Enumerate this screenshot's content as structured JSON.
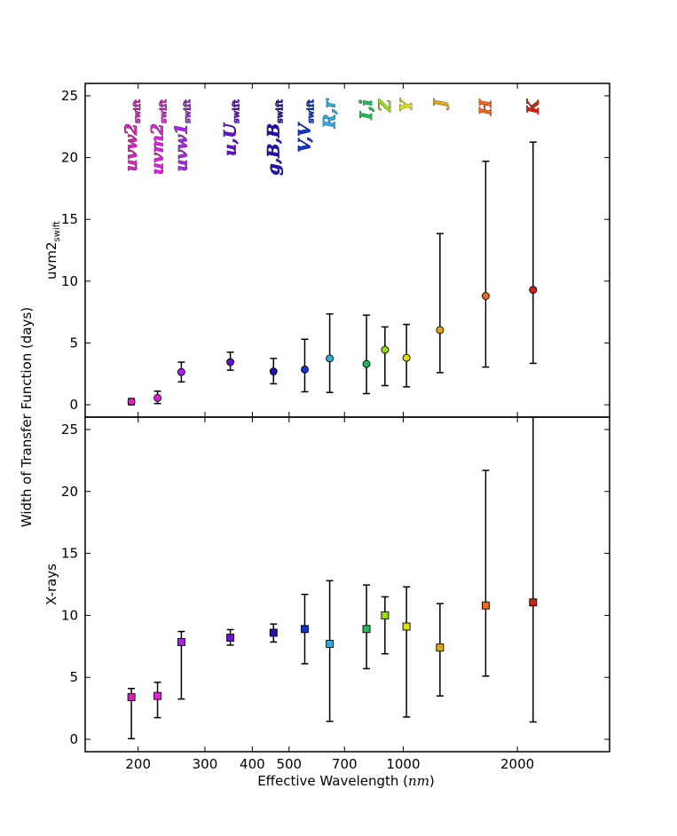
{
  "chart_data": {
    "type": "scatter",
    "xscale": "log",
    "xlim": [
      145,
      3500
    ],
    "xticks": [
      200,
      300,
      400,
      500,
      700,
      1000,
      2000
    ],
    "xticklabels": [
      "200",
      "300",
      "400",
      "500",
      "700",
      "1000",
      "2000"
    ],
    "xlabel_text": "Effective Wavelength",
    "xlabel_unit": "nm",
    "shared_ylabel": "Width of Transfer Function (days)",
    "bands": [
      {
        "main": "uvw2",
        "sub": "swift",
        "color": "#dd22bb"
      },
      {
        "main": "uvm2",
        "sub": "swift",
        "color": "#dd22dd"
      },
      {
        "main": "uvw1",
        "sub": "swift",
        "color": "#aa22ee"
      },
      {
        "main": "u,U",
        "sub": "swift",
        "color": "#6611cc"
      },
      {
        "main": "g,B,B",
        "sub": "swift",
        "color": "#2211bb"
      },
      {
        "main": "V,V",
        "sub": "swift",
        "color": "#1133cc"
      },
      {
        "main": "R,r",
        "sub": "",
        "color": "#33aadd"
      },
      {
        "main": "I,i",
        "sub": "",
        "color": "#22bb55"
      },
      {
        "main": "Z",
        "sub": "",
        "color": "#99dd11"
      },
      {
        "main": "Y",
        "sub": "",
        "color": "#dddd11"
      },
      {
        "main": "J",
        "sub": "",
        "color": "#ddaa11"
      },
      {
        "main": "H",
        "sub": "",
        "color": "#ee6622"
      },
      {
        "main": "K",
        "sub": "",
        "color": "#cc2211"
      }
    ],
    "panels": [
      {
        "ylabel": "uvm2",
        "ylabel_sub": "swift",
        "marker": "circle",
        "ylim": [
          -1,
          26
        ],
        "yticks": [
          0,
          5,
          10,
          15,
          20,
          25
        ],
        "points": [
          {
            "x": 192,
            "y": 0.25,
            "lo": 0.0,
            "hi": 0.5
          },
          {
            "x": 225,
            "y": 0.55,
            "lo": 0.1,
            "hi": 1.1
          },
          {
            "x": 260,
            "y": 2.65,
            "lo": 1.85,
            "hi": 3.45
          },
          {
            "x": 350,
            "y": 3.45,
            "lo": 2.8,
            "hi": 4.25
          },
          {
            "x": 455,
            "y": 2.7,
            "lo": 1.7,
            "hi": 3.75
          },
          {
            "x": 550,
            "y": 2.85,
            "lo": 1.05,
            "hi": 5.3
          },
          {
            "x": 640,
            "y": 3.75,
            "lo": 1.0,
            "hi": 7.35
          },
          {
            "x": 800,
            "y": 3.3,
            "lo": 0.9,
            "hi": 7.25
          },
          {
            "x": 895,
            "y": 4.45,
            "lo": 1.55,
            "hi": 6.3
          },
          {
            "x": 1020,
            "y": 3.8,
            "lo": 1.45,
            "hi": 6.5
          },
          {
            "x": 1250,
            "y": 6.05,
            "lo": 2.6,
            "hi": 13.85
          },
          {
            "x": 1650,
            "y": 8.8,
            "lo": 3.05,
            "hi": 19.7
          },
          {
            "x": 2200,
            "y": 9.3,
            "lo": 3.35,
            "hi": 21.25
          }
        ]
      },
      {
        "ylabel": "X-rays",
        "ylabel_sub": "",
        "marker": "square",
        "ylim": [
          -1,
          26
        ],
        "yticks": [
          0,
          5,
          10,
          15,
          20,
          25
        ],
        "points": [
          {
            "x": 192,
            "y": 3.4,
            "lo": 0.05,
            "hi": 4.1
          },
          {
            "x": 225,
            "y": 3.5,
            "lo": 1.75,
            "hi": 4.6
          },
          {
            "x": 260,
            "y": 7.85,
            "lo": 3.25,
            "hi": 8.7
          },
          {
            "x": 350,
            "y": 8.2,
            "lo": 7.6,
            "hi": 8.85
          },
          {
            "x": 455,
            "y": 8.6,
            "lo": 7.85,
            "hi": 9.3
          },
          {
            "x": 550,
            "y": 8.9,
            "lo": 6.1,
            "hi": 11.7
          },
          {
            "x": 640,
            "y": 7.7,
            "lo": 1.45,
            "hi": 12.8
          },
          {
            "x": 800,
            "y": 8.9,
            "lo": 5.7,
            "hi": 12.45
          },
          {
            "x": 895,
            "y": 10.0,
            "lo": 6.9,
            "hi": 11.5
          },
          {
            "x": 1020,
            "y": 9.1,
            "lo": 1.8,
            "hi": 12.3
          },
          {
            "x": 1250,
            "y": 7.4,
            "lo": 3.5,
            "hi": 10.95
          },
          {
            "x": 1650,
            "y": 10.8,
            "lo": 5.1,
            "hi": 21.7
          },
          {
            "x": 2200,
            "y": 11.05,
            "lo": 1.4,
            "hi": 26.0
          }
        ]
      }
    ]
  }
}
